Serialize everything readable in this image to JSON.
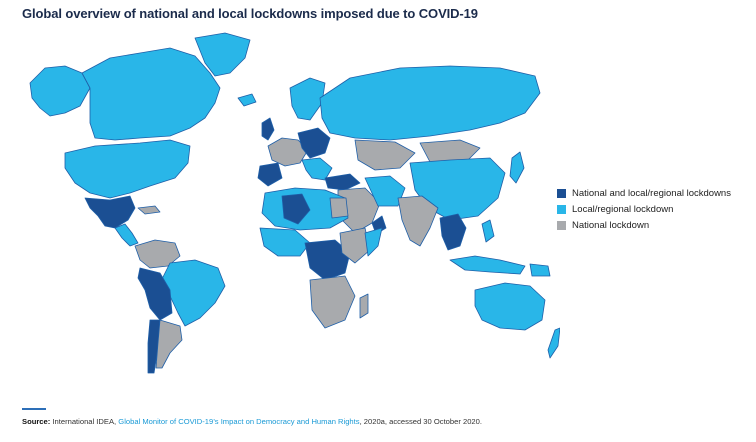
{
  "title": "Global overview of national and local lockdowns imposed due to COVID-19",
  "legend": {
    "items": [
      {
        "label": "National and local/regional lockdowns",
        "color": "#1b4f93"
      },
      {
        "label": "Local/regional lockdown",
        "color": "#29b6e8"
      },
      {
        "label": "National lockdown",
        "color": "#a8aaad"
      }
    ]
  },
  "source": {
    "label": "Source:",
    "org": "International IDEA,",
    "link_text": "Global Monitor of COVID-19’s Impact on Democracy and Human Rights",
    "tail": ", 2020a, accessed 30 October 2020."
  },
  "colors": {
    "both": "#1b4f93",
    "local": "#29b6e8",
    "national": "#a8aaad",
    "border": "#1f5fa8"
  }
}
